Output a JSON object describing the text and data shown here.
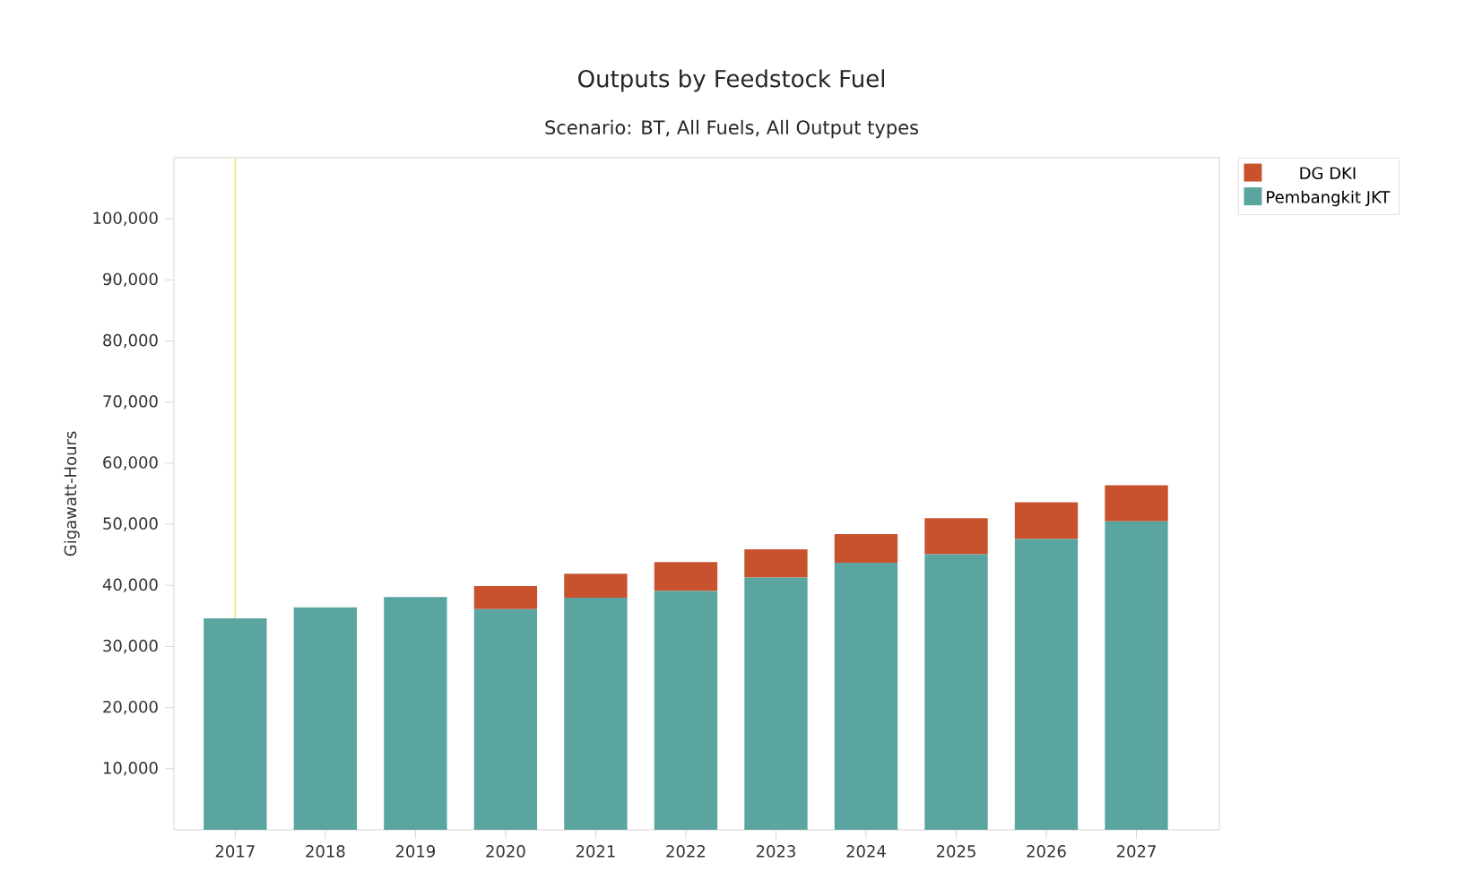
{
  "chart_data": {
    "type": "bar",
    "stacked": true,
    "title": "Outputs by Feedstock Fuel",
    "subtitle": "Scenario: BT, All Fuels, All Output types",
    "ylabel": "Gigawatt-Hours",
    "categories": [
      "2017",
      "2018",
      "2019",
      "2020",
      "2021",
      "2022",
      "2023",
      "2024",
      "2025",
      "2026",
      "2027"
    ],
    "series": [
      {
        "name": "Pembangkit JKT",
        "color": "#5ba5a0",
        "values": [
          34600,
          36400,
          38100,
          36100,
          38000,
          39100,
          41300,
          43700,
          45100,
          47600,
          50500
        ]
      },
      {
        "name": "DG DKI",
        "color": "#c8522e",
        "values": [
          null,
          null,
          null,
          3800,
          3900,
          4700,
          4600,
          4700,
          5900,
          6000,
          5900
        ]
      }
    ],
    "ylim": [
      0,
      110000
    ],
    "yticks": [
      {
        "value": 10000,
        "label": "10,000"
      },
      {
        "value": 20000,
        "label": "20,000"
      },
      {
        "value": 30000,
        "label": "30,000"
      },
      {
        "value": 40000,
        "label": "40,000"
      },
      {
        "value": 50000,
        "label": "50,000"
      },
      {
        "value": 60000,
        "label": "60,000"
      },
      {
        "value": 70000,
        "label": "70,000"
      },
      {
        "value": 80000,
        "label": "80,000"
      },
      {
        "value": 90000,
        "label": "90,000"
      },
      {
        "value": 100000,
        "label": "100,000"
      }
    ],
    "ref_lines": [
      {
        "axis": "x",
        "value": "2017",
        "color": "#f3e59a"
      }
    ],
    "legend": "top right",
    "grid": false
  }
}
